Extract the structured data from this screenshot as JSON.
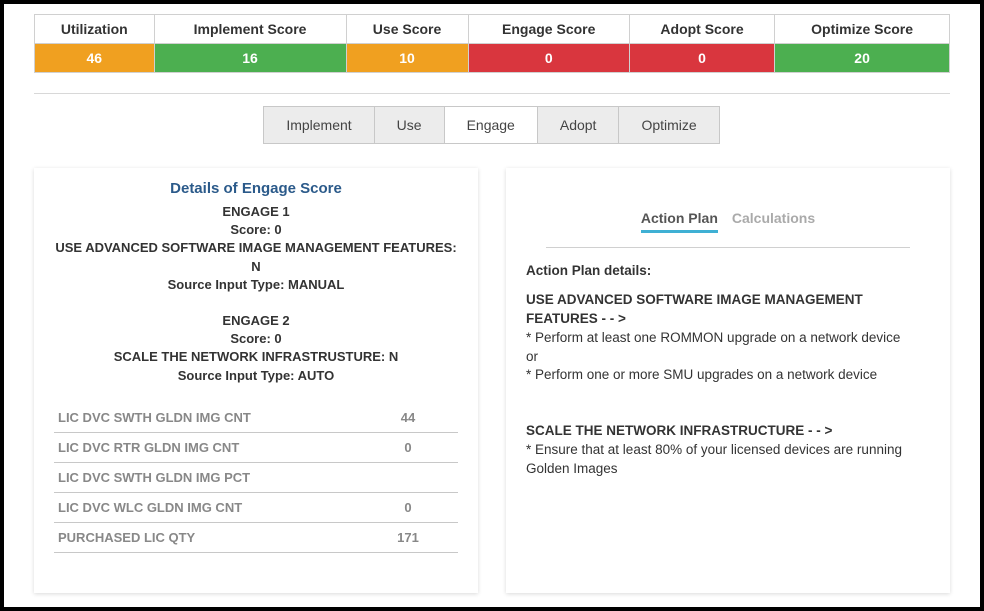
{
  "score_table": {
    "headers": [
      "Utilization",
      "Implement Score",
      "Use Score",
      "Engage Score",
      "Adopt Score",
      "Optimize Score"
    ],
    "values": [
      "46",
      "16",
      "10",
      "0",
      "0",
      "20"
    ],
    "colors": [
      "c-orange",
      "c-green",
      "c-orange",
      "c-red",
      "c-red",
      "c-green"
    ]
  },
  "tabs": {
    "items": [
      "Implement",
      "Use",
      "Engage",
      "Adopt",
      "Optimize"
    ],
    "active": "Engage"
  },
  "details": {
    "title": "Details of Engage Score",
    "blocks": [
      {
        "name": "ENGAGE 1",
        "score": "Score: 0",
        "line1": "USE ADVANCED SOFTWARE IMAGE MANAGEMENT FEATURES: N",
        "line2": "Source Input Type: MANUAL"
      },
      {
        "name": "ENGAGE 2",
        "score": "Score: 0",
        "line1": "SCALE THE NETWORK INFRASTRUSTURE: N",
        "line2": "Source Input Type: AUTO"
      }
    ],
    "metrics": [
      {
        "label": "LIC DVC SWTH GLDN IMG CNT",
        "value": "44"
      },
      {
        "label": "LIC DVC RTR GLDN IMG CNT",
        "value": "0"
      },
      {
        "label": "LIC DVC SWTH GLDN IMG PCT",
        "value": ""
      },
      {
        "label": "LIC DVC WLC GLDN IMG CNT",
        "value": "0"
      },
      {
        "label": "PURCHASED LIC QTY",
        "value": "171"
      }
    ]
  },
  "action_panel": {
    "sub_tabs": {
      "items": [
        "Action Plan",
        "Calculations"
      ],
      "active": "Action Plan"
    },
    "heading": "Action Plan details:",
    "sec1_title": "USE ADVANCED SOFTWARE IMAGE MANAGEMENT FEATURES - - >",
    "sec1_l1": "* Perform at least one ROMMON upgrade on a network device",
    "sec1_or": "or",
    "sec1_l2": "* Perform one or more SMU upgrades on a network device",
    "sec2_title": "SCALE THE NETWORK INFRASTRUCTURE - - >",
    "sec2_l1": "* Ensure that at least 80% of your licensed devices are running Golden Images"
  }
}
